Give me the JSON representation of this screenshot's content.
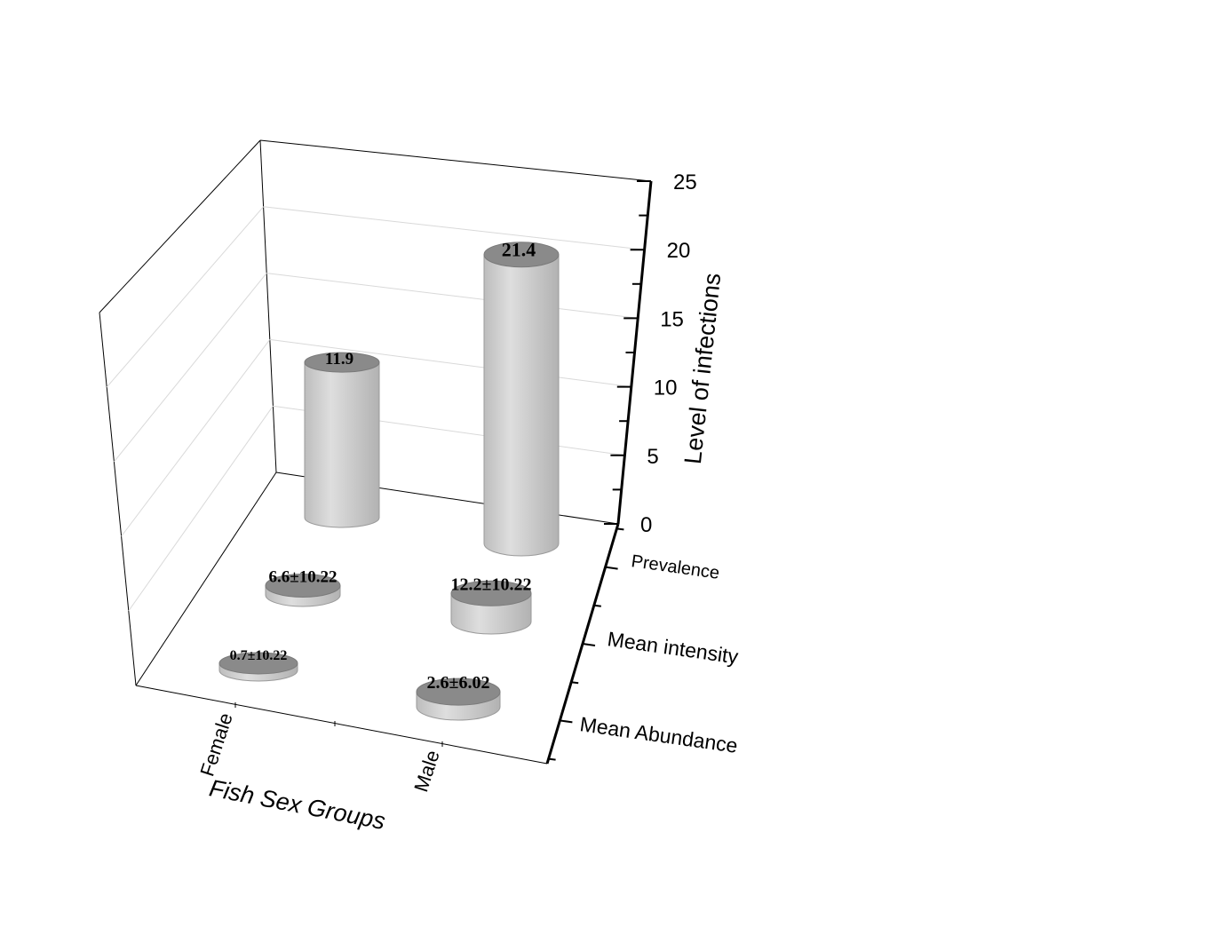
{
  "chart_data": {
    "type": "bar3d",
    "title": "",
    "xlabel": "Fish Sex Groups",
    "ylabel": "Level of infections",
    "zlabel": "",
    "categories": [
      "Female",
      "Male"
    ],
    "series": [
      {
        "name": "Prevalence",
        "values": [
          11.9,
          21.4
        ],
        "labels": [
          "11.9",
          "21.4"
        ]
      },
      {
        "name": "Mean intensity",
        "values": [
          6.6,
          12.2
        ],
        "labels": [
          "6.6±10.22",
          "12.2±10.22"
        ]
      },
      {
        "name": "Mean Abundance",
        "values": [
          0.7,
          2.6
        ],
        "labels": [
          "0.7±10.22",
          "2.6±6.02"
        ]
      }
    ],
    "ylim": [
      0,
      25
    ],
    "yticks": [
      "0",
      "5",
      "10",
      "15",
      "20",
      "25"
    ],
    "grid": true,
    "bar_shape": "cylinder",
    "colors": {
      "side": "#c9c9c9",
      "top": "#8a8a8a",
      "edge": "#7a7a7a",
      "axis": "#000000",
      "grid": "#d9d9d9"
    }
  }
}
